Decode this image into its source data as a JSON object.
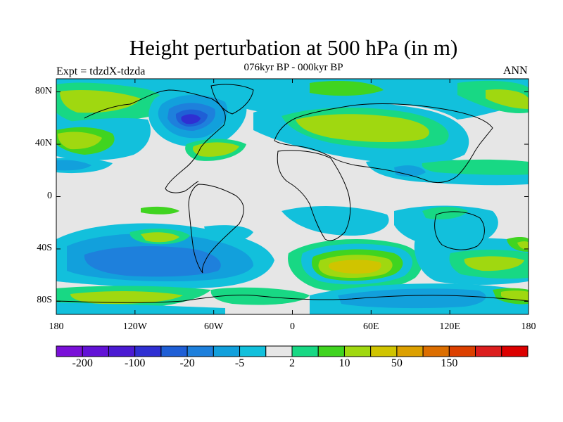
{
  "title": "Height perturbation at 500 hPa (in m)",
  "left_label": "Expt = tdzdX-tdzda",
  "center_label": "076kyr BP - 000kyr BP",
  "right_label": "ANN",
  "lat_ticks": [
    {
      "lat": 80,
      "label": "80N"
    },
    {
      "lat": 40,
      "label": "40N"
    },
    {
      "lat": 0,
      "label": "0"
    },
    {
      "lat": -40,
      "label": "40S"
    },
    {
      "lat": -80,
      "label": "80S"
    }
  ],
  "lon_ticks": [
    {
      "lon": -180,
      "label": "180"
    },
    {
      "lon": -120,
      "label": "120W"
    },
    {
      "lon": -60,
      "label": "60W"
    },
    {
      "lon": 0,
      "label": "0"
    },
    {
      "lon": 60,
      "label": "60E"
    },
    {
      "lon": 120,
      "label": "120E"
    },
    {
      "lon": 180,
      "label": "180"
    }
  ],
  "colorbar": {
    "colors": [
      "#7a10d8",
      "#6212d6",
      "#4b1ad2",
      "#2f2fd2",
      "#1f5fd6",
      "#1e80dc",
      "#12a0dc",
      "#12c0dc",
      "#e6e6e6",
      "#18d884",
      "#40d420",
      "#a0d810",
      "#d0c400",
      "#dca000",
      "#dc6e00",
      "#dc4000",
      "#dc1e1e",
      "#dc0000"
    ],
    "labels": [
      {
        "boundary": 1,
        "text": "-200"
      },
      {
        "boundary": 3,
        "text": "-100"
      },
      {
        "boundary": 5,
        "text": "-20"
      },
      {
        "boundary": 7,
        "text": "-5"
      },
      {
        "boundary": 9,
        "text": "2"
      },
      {
        "boundary": 11,
        "text": "10"
      },
      {
        "boundary": 13,
        "text": "50"
      },
      {
        "boundary": 15,
        "text": "150"
      }
    ]
  },
  "map_colors": {
    "background": "#e6e6e6",
    "neg_weak": "#12c0dc",
    "neg_mid": "#12a0dc",
    "neg_strong": "#1e80dc",
    "neg_stronger": "#1f5fd6",
    "neg_max": "#2f2fd2",
    "pos_weak": "#18d884",
    "pos_mid": "#40d420",
    "pos_strong": "#a0d810",
    "pos_max": "#d0c400",
    "coast": "#000000"
  }
}
